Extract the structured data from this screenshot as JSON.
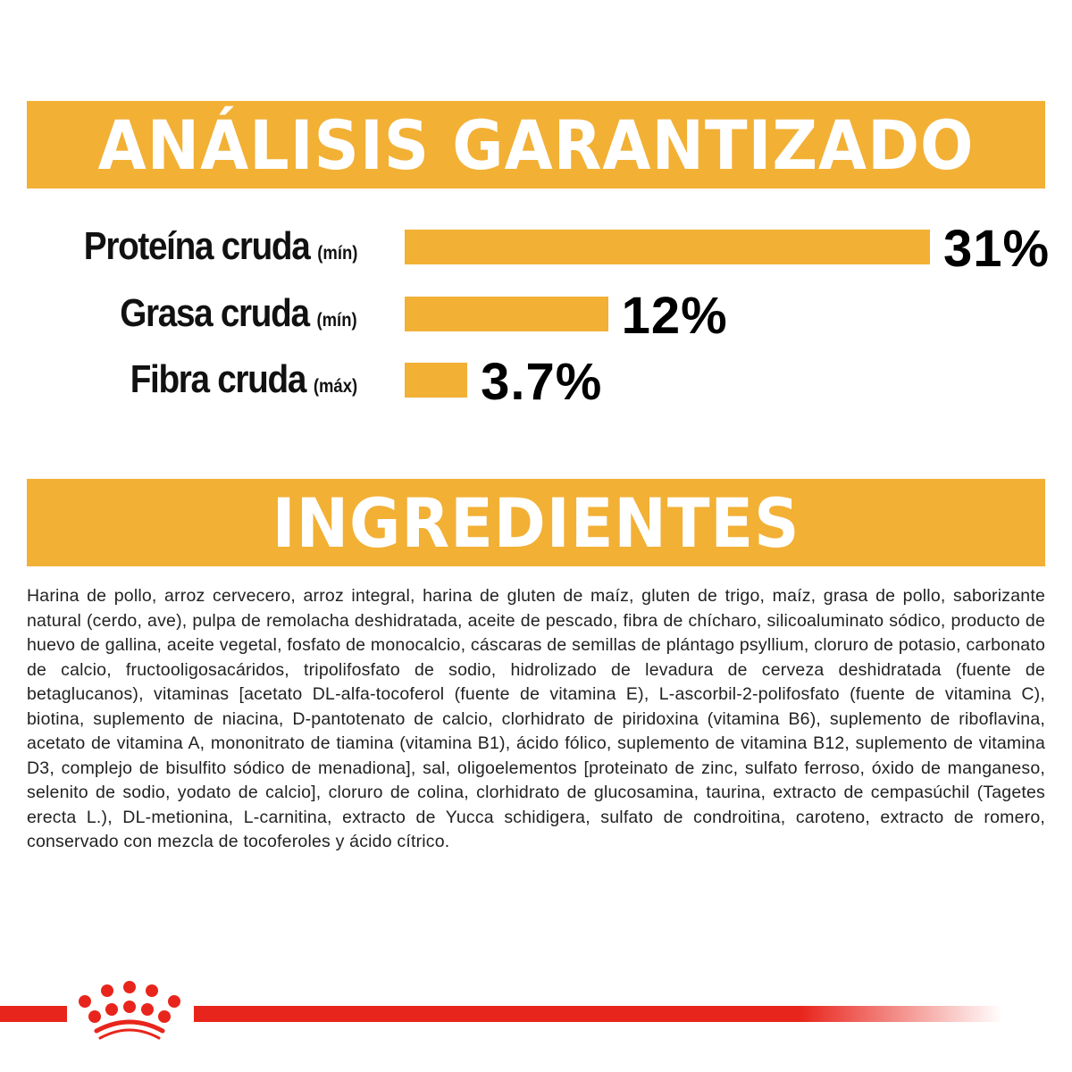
{
  "analysis": {
    "title": "ANÁLISIS GARANTIZADO"
  },
  "chart_data": {
    "type": "bar",
    "title": "ANÁLISIS GARANTIZADO",
    "categories": [
      "Proteína cruda",
      "Grasa cruda",
      "Fibra cruda"
    ],
    "qualifiers": [
      "(mín)",
      "(mín)",
      "(máx)"
    ],
    "values": [
      31,
      12,
      3.7
    ],
    "value_labels": [
      "31%",
      "12%",
      "3.7%"
    ],
    "unit": "%",
    "color": "#f2b035"
  },
  "ingredients": {
    "title": "INGREDIENTES",
    "text": "Harina de pollo, arroz cervecero, arroz integral, harina de gluten de maíz, gluten de trigo, maíz, grasa de pollo, saborizante natural (cerdo, ave), pulpa de remolacha deshidratada, aceite de pescado, fibra de chícharo, silicoaluminato sódico, producto de huevo de gallina, aceite vegetal, fosfato de monocalcio, cáscaras de semillas de plántago psyllium, cloruro de potasio, carbonato de calcio, fructooligosacáridos, tripolifosfato de sodio, hidrolizado de levadura de cerveza deshidratada (fuente de betaglucanos), vitaminas [acetato DL-alfa-tocoferol (fuente de vitamina E), L-ascorbil-2-polifosfato (fuente de vitamina C), biotina, suplemento de niacina, D-pantotenato de calcio, clorhidrato de piridoxina (vitamina B6), suplemento de riboflavina, acetato de vitamina A, mononitrato de tiamina (vitamina B1), ácido fólico, suplemento de vitamina B12, suplemento de vitamina D3, complejo de bisulfito sódico de menadiona], sal, oligoelementos [proteinato de zinc, sulfato ferroso, óxido de manganeso, selenito de sodio, yodato de calcio], cloruro de colina, clorhidrato de glucosamina, taurina, extracto de cempasúchil (Tagetes erecta L.), DL-metionina, L-carnitina, extracto de Yucca schidigera, sulfato de condroitina, caroteno, extracto de romero, conservado con mezcla de tocoferoles y ácido cítrico."
  },
  "brand": {
    "logo_icon": "crown-icon",
    "accent": "#e8251c"
  }
}
